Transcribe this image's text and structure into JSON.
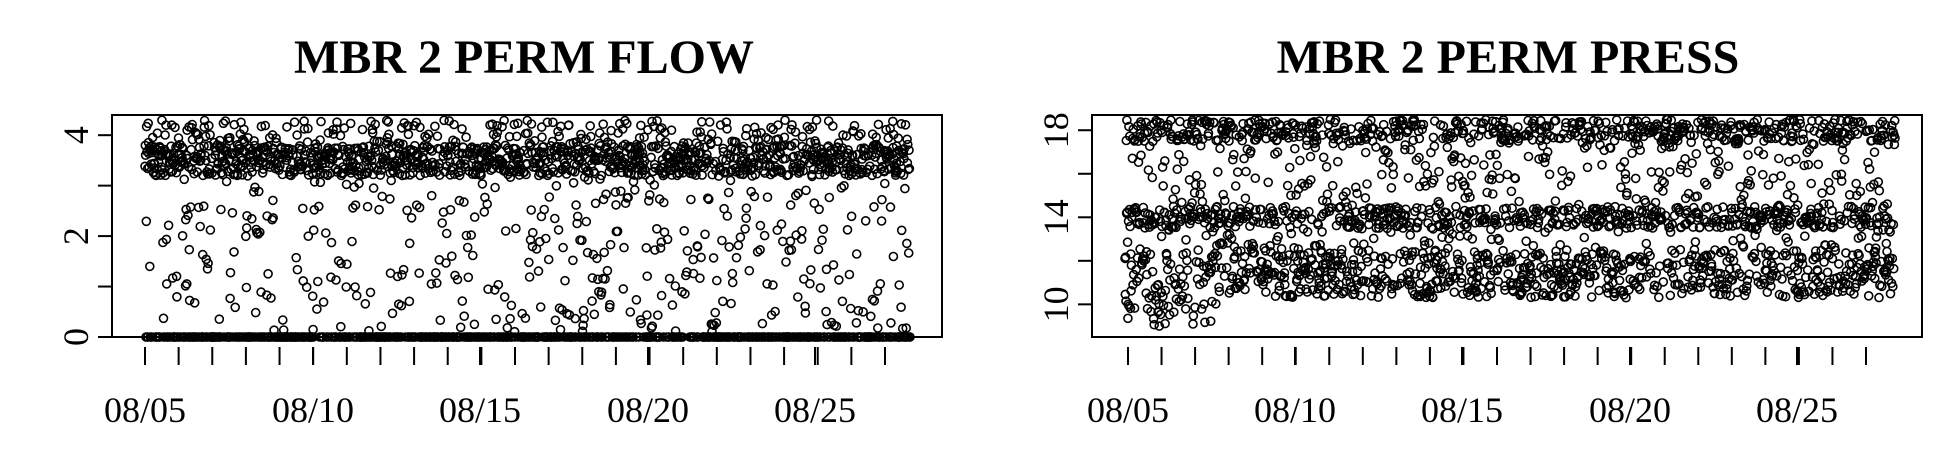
{
  "chart_data": [
    {
      "type": "scatter",
      "title": "MBR 2 PERM FLOW",
      "xlabel": "",
      "ylabel": "",
      "x_range": [
        "08/05",
        "08/27"
      ],
      "ylim": [
        0,
        4.4
      ],
      "y_ticks": [
        0,
        2,
        4
      ],
      "y_minor_ticks": [
        0,
        1,
        2,
        3,
        4
      ],
      "x_tick_labels": [
        "08/05",
        "08/10",
        "08/15",
        "08/20",
        "08/25"
      ],
      "x_minor_tick_days": 23,
      "marker": "open-circle",
      "color": "#000000",
      "grid": false,
      "legend": "none",
      "pattern": {
        "baseline": 0,
        "dense_band": [
          3.2,
          3.8
        ],
        "typical_max": 4.3,
        "scatter_min": 0.1
      }
    },
    {
      "type": "scatter",
      "title": "MBR 2 PERM PRESS",
      "xlabel": "",
      "ylabel": "",
      "x_range": [
        "08/05",
        "08/27"
      ],
      "ylim": [
        8.5,
        18.7
      ],
      "y_ticks": [
        10,
        14,
        18
      ],
      "y_minor_ticks": [
        10,
        12,
        14,
        16,
        18
      ],
      "x_tick_labels": [
        "08/05",
        "08/10",
        "08/15",
        "08/20",
        "08/25"
      ],
      "x_minor_tick_days": 23,
      "marker": "open-circle",
      "color": "#000000",
      "grid": false,
      "legend": "none",
      "pattern": {
        "min": 9.0,
        "max": 18.5,
        "dense_lower": [
          10.3,
          12.5
        ],
        "dense_mid": [
          13.5,
          14.5
        ],
        "dense_upper": [
          17.5,
          18.3
        ]
      }
    }
  ]
}
